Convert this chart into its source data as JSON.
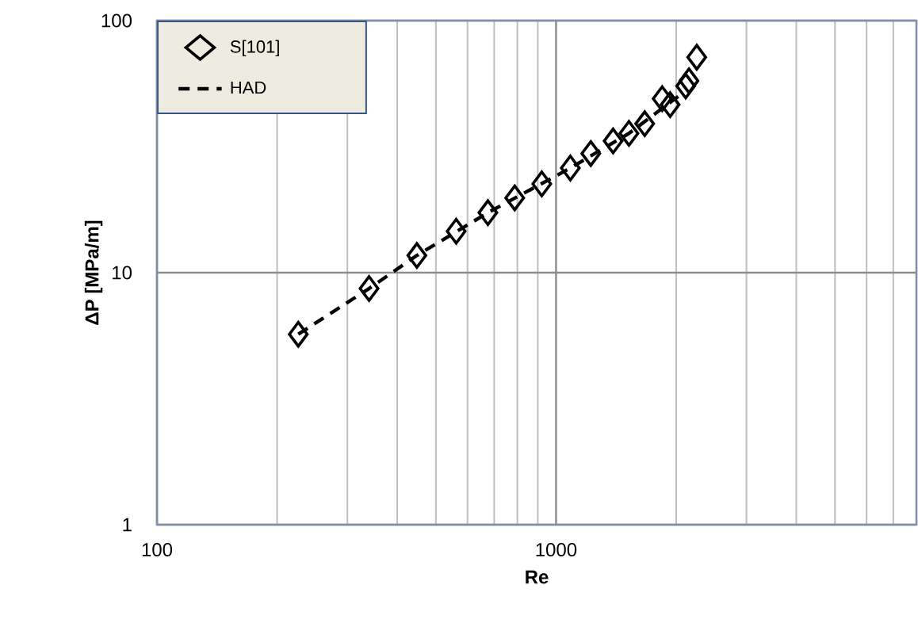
{
  "chart_data": {
    "type": "scatter",
    "xlabel": "Re",
    "ylabel": "ΔP [MPa/m]",
    "log": "xy",
    "xlim": [
      100,
      8000
    ],
    "ylim": [
      1,
      100
    ],
    "xticks": [
      100,
      1000
    ],
    "yticks": [
      1,
      10,
      100
    ],
    "grid": true,
    "legend": "top left",
    "series": [
      {
        "name": "S[101]",
        "marker": "diamond",
        "color": "#000000",
        "x": [
          226,
          340,
          448,
          562,
          675,
          788,
          921,
          1086,
          1222,
          1390,
          1523,
          1668,
          1845,
          1932,
          2056,
          2113,
          2153,
          2252
        ],
        "values": [
          5.7,
          8.65,
          11.7,
          14.6,
          17.3,
          19.8,
          22.5,
          26,
          29.7,
          33.3,
          35.7,
          39,
          49,
          46.4,
          null,
          55,
          57.7,
          71.6
        ]
      },
      {
        "name": "HAD",
        "type": "line",
        "marker": "none",
        "line_style": "dashed",
        "color": "#000000",
        "x": [
          226,
          340,
          448,
          675,
          1086,
          1523,
          2056
        ],
        "values": [
          5.7,
          8.65,
          11.7,
          17.3,
          26,
          35.7,
          51
        ]
      }
    ]
  }
}
